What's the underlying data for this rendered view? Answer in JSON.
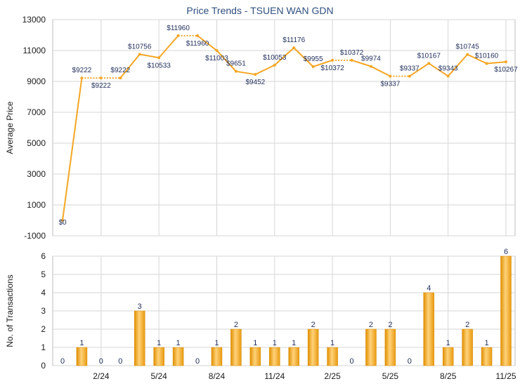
{
  "chart_data": [
    {
      "type": "line",
      "title": "Price Trends - TSUEN WAN GDN",
      "ylabel": "Average Price",
      "ylim": [
        -1000,
        13000
      ],
      "yticks": [
        -1000,
        1000,
        3000,
        5000,
        7000,
        9000,
        11000,
        13000
      ],
      "grid": true,
      "color": "#f5a623",
      "values": [
        0,
        9222,
        9222,
        9222,
        10756,
        10533,
        11960,
        11960,
        11003,
        9651,
        9452,
        10053,
        11176,
        9955,
        10372,
        10372,
        9974,
        9337,
        9337,
        10167,
        9343,
        10745,
        10160,
        10267
      ],
      "labels": [
        "$0",
        "$9222",
        "$9222",
        "$9222",
        "$10756",
        "$10533",
        "$11960",
        "$11960",
        "$11003",
        "$9651",
        "$9452",
        "$10053",
        "$11176",
        "$9955",
        "$10372",
        "$10372",
        "$9974",
        "$9337",
        "$9337",
        "$10167",
        "$9343",
        "$10745",
        "$10160",
        "$10267"
      ]
    },
    {
      "type": "bar",
      "ylabel": "No. of Transactions",
      "ylim": [
        0,
        6
      ],
      "yticks": [
        0,
        1,
        2,
        3,
        4,
        5,
        6
      ],
      "grid": true,
      "color": "#f5a623",
      "values": [
        0,
        1,
        0,
        0,
        3,
        1,
        1,
        0,
        1,
        2,
        1,
        1,
        1,
        2,
        1,
        0,
        2,
        2,
        0,
        4,
        1,
        2,
        1,
        6
      ],
      "x_ticks": [
        "2/24",
        "5/24",
        "8/24",
        "11/24",
        "2/25",
        "5/25",
        "8/25",
        "11/25"
      ]
    }
  ]
}
